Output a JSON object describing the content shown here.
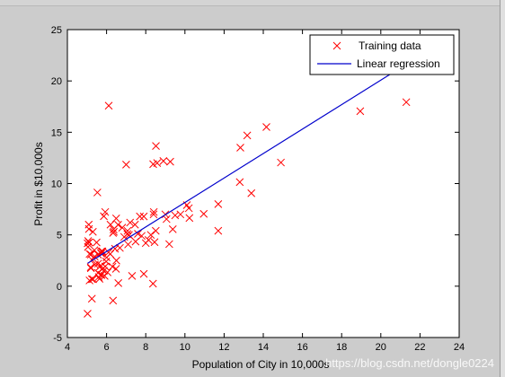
{
  "chart_data": {
    "type": "scatter",
    "title": "",
    "xlabel": "Population of City in 10,000s",
    "ylabel": "Profit in $10,000s",
    "xlim": [
      4,
      24
    ],
    "ylim": [
      -5,
      25
    ],
    "xticks": [
      4,
      6,
      8,
      10,
      12,
      14,
      16,
      18,
      20,
      22,
      24
    ],
    "yticks": [
      -5,
      0,
      5,
      10,
      15,
      20,
      25
    ],
    "grid": false,
    "legend_position": "top-right",
    "series": [
      {
        "name": "Training data",
        "marker": "x",
        "color": "#ff0000",
        "points": [
          [
            6.11,
            17.59
          ],
          [
            5.53,
            9.13
          ],
          [
            8.52,
            13.66
          ],
          [
            7.0,
            11.85
          ],
          [
            5.86,
            6.82
          ],
          [
            8.38,
            11.89
          ],
          [
            7.48,
            4.35
          ],
          [
            8.58,
            12.0
          ],
          [
            6.49,
            6.6
          ],
          [
            5.05,
            3.82
          ],
          [
            5.71,
            3.25
          ],
          [
            14.16,
            15.51
          ],
          [
            5.73,
            3.16
          ],
          [
            8.41,
            7.23
          ],
          [
            5.64,
            0.72
          ],
          [
            5.38,
            3.51
          ],
          [
            6.37,
            5.3
          ],
          [
            5.13,
            0.56
          ],
          [
            6.43,
            3.65
          ],
          [
            7.07,
            5.39
          ],
          [
            6.19,
            3.14
          ],
          [
            20.27,
            21.77
          ],
          [
            5.49,
            4.26
          ],
          [
            6.33,
            5.19
          ],
          [
            5.56,
            3.08
          ],
          [
            18.95,
            22.64
          ],
          [
            12.83,
            13.5
          ],
          [
            10.96,
            7.05
          ],
          [
            13.18,
            14.69
          ],
          [
            22.2,
            24.15
          ],
          [
            5.25,
            -1.22
          ],
          [
            6.59,
            5.99
          ],
          [
            9.25,
            12.13
          ],
          [
            5.19,
            1.85
          ],
          [
            9.06,
            6.54
          ],
          [
            5.11,
            4.26
          ],
          [
            5.73,
            3.39
          ],
          [
            8.45,
            4.29
          ],
          [
            7.14,
            4.99
          ],
          [
            6.05,
            1.35
          ],
          [
            5.25,
            2.57
          ],
          [
            5.1,
            5.57
          ],
          [
            5.79,
            1.68
          ],
          [
            5.72,
            1.09
          ],
          [
            5.06,
            4.4
          ],
          [
            5.25,
            0.68
          ],
          [
            5.93,
            1.92
          ],
          [
            5.13,
            3.14
          ],
          [
            5.03,
            4.18
          ],
          [
            5.31,
            0.68
          ],
          [
            5.09,
            6.0
          ],
          [
            11.7,
            8.0
          ],
          [
            5.93,
            7.23
          ],
          [
            6.48,
            1.69
          ],
          [
            7.06,
            5.08
          ],
          [
            5.64,
            1.88
          ],
          [
            7.45,
            6.0
          ],
          [
            5.71,
            2.01
          ],
          [
            6.68,
            3.73
          ],
          [
            9.77,
            7.0
          ],
          [
            7.79,
            4.9
          ],
          [
            5.2,
            1.75
          ],
          [
            8.51,
            5.4
          ],
          [
            6.33,
            -1.4
          ],
          [
            5.56,
            1.3
          ],
          [
            6.36,
            5.53
          ],
          [
            5.03,
            -2.68
          ],
          [
            5.2,
            3.08
          ],
          [
            8.14,
            4.5
          ],
          [
            8.37,
            0.25
          ],
          [
            10.23,
            6.64
          ],
          [
            7.1,
            4.07
          ],
          [
            5.86,
            1.5
          ],
          [
            9.38,
            5.55
          ],
          [
            8.26,
            5.0
          ],
          [
            5.57,
            2.2
          ],
          [
            5.74,
            1.1
          ],
          [
            6.2,
            6.0
          ],
          [
            7.9,
            6.8
          ],
          [
            5.3,
            5.3
          ],
          [
            6.1,
            3.3
          ],
          [
            5.39,
            2.9
          ],
          [
            5.79,
            3.4
          ],
          [
            7.2,
            6.2
          ],
          [
            6.5,
            2.5
          ],
          [
            5.9,
            1.0
          ],
          [
            9.2,
            4.1
          ],
          [
            9.5,
            6.9
          ],
          [
            10.1,
            7.9
          ],
          [
            9.0,
            7.0
          ],
          [
            7.6,
            5.1
          ],
          [
            8.0,
            4.2
          ],
          [
            6.8,
            5.7
          ],
          [
            21.3,
            17.93
          ],
          [
            18.95,
            17.05
          ],
          [
            12.8,
            10.14
          ],
          [
            13.39,
            9.06
          ],
          [
            14.9,
            12.05
          ],
          [
            11.7,
            5.4
          ],
          [
            10.2,
            7.6
          ],
          [
            7.7,
            6.8
          ],
          [
            6.0,
            2.8
          ],
          [
            5.4,
            2.1
          ],
          [
            5.6,
            0.9
          ],
          [
            6.9,
            4.8
          ],
          [
            6.6,
            0.3
          ],
          [
            8.9,
            12.2
          ],
          [
            5.98,
            2.4
          ],
          [
            7.3,
            1.0
          ],
          [
            7.9,
            1.2
          ],
          [
            8.4,
            7.0
          ],
          [
            6.3,
            1.9
          ]
        ]
      },
      {
        "name": "Linear regression",
        "type": "line",
        "color": "#0000cc",
        "points": [
          [
            5.03,
            2.23
          ],
          [
            22.2,
            22.7
          ]
        ]
      }
    ],
    "watermark": "https://blog.csdn.net/dongle0224"
  }
}
